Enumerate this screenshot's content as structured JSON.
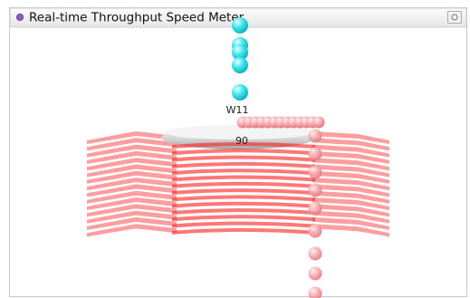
{
  "panel": {
    "title": "Real-time Throughput Speed Meter"
  },
  "meter": {
    "label": "W11",
    "value": 90
  }
}
